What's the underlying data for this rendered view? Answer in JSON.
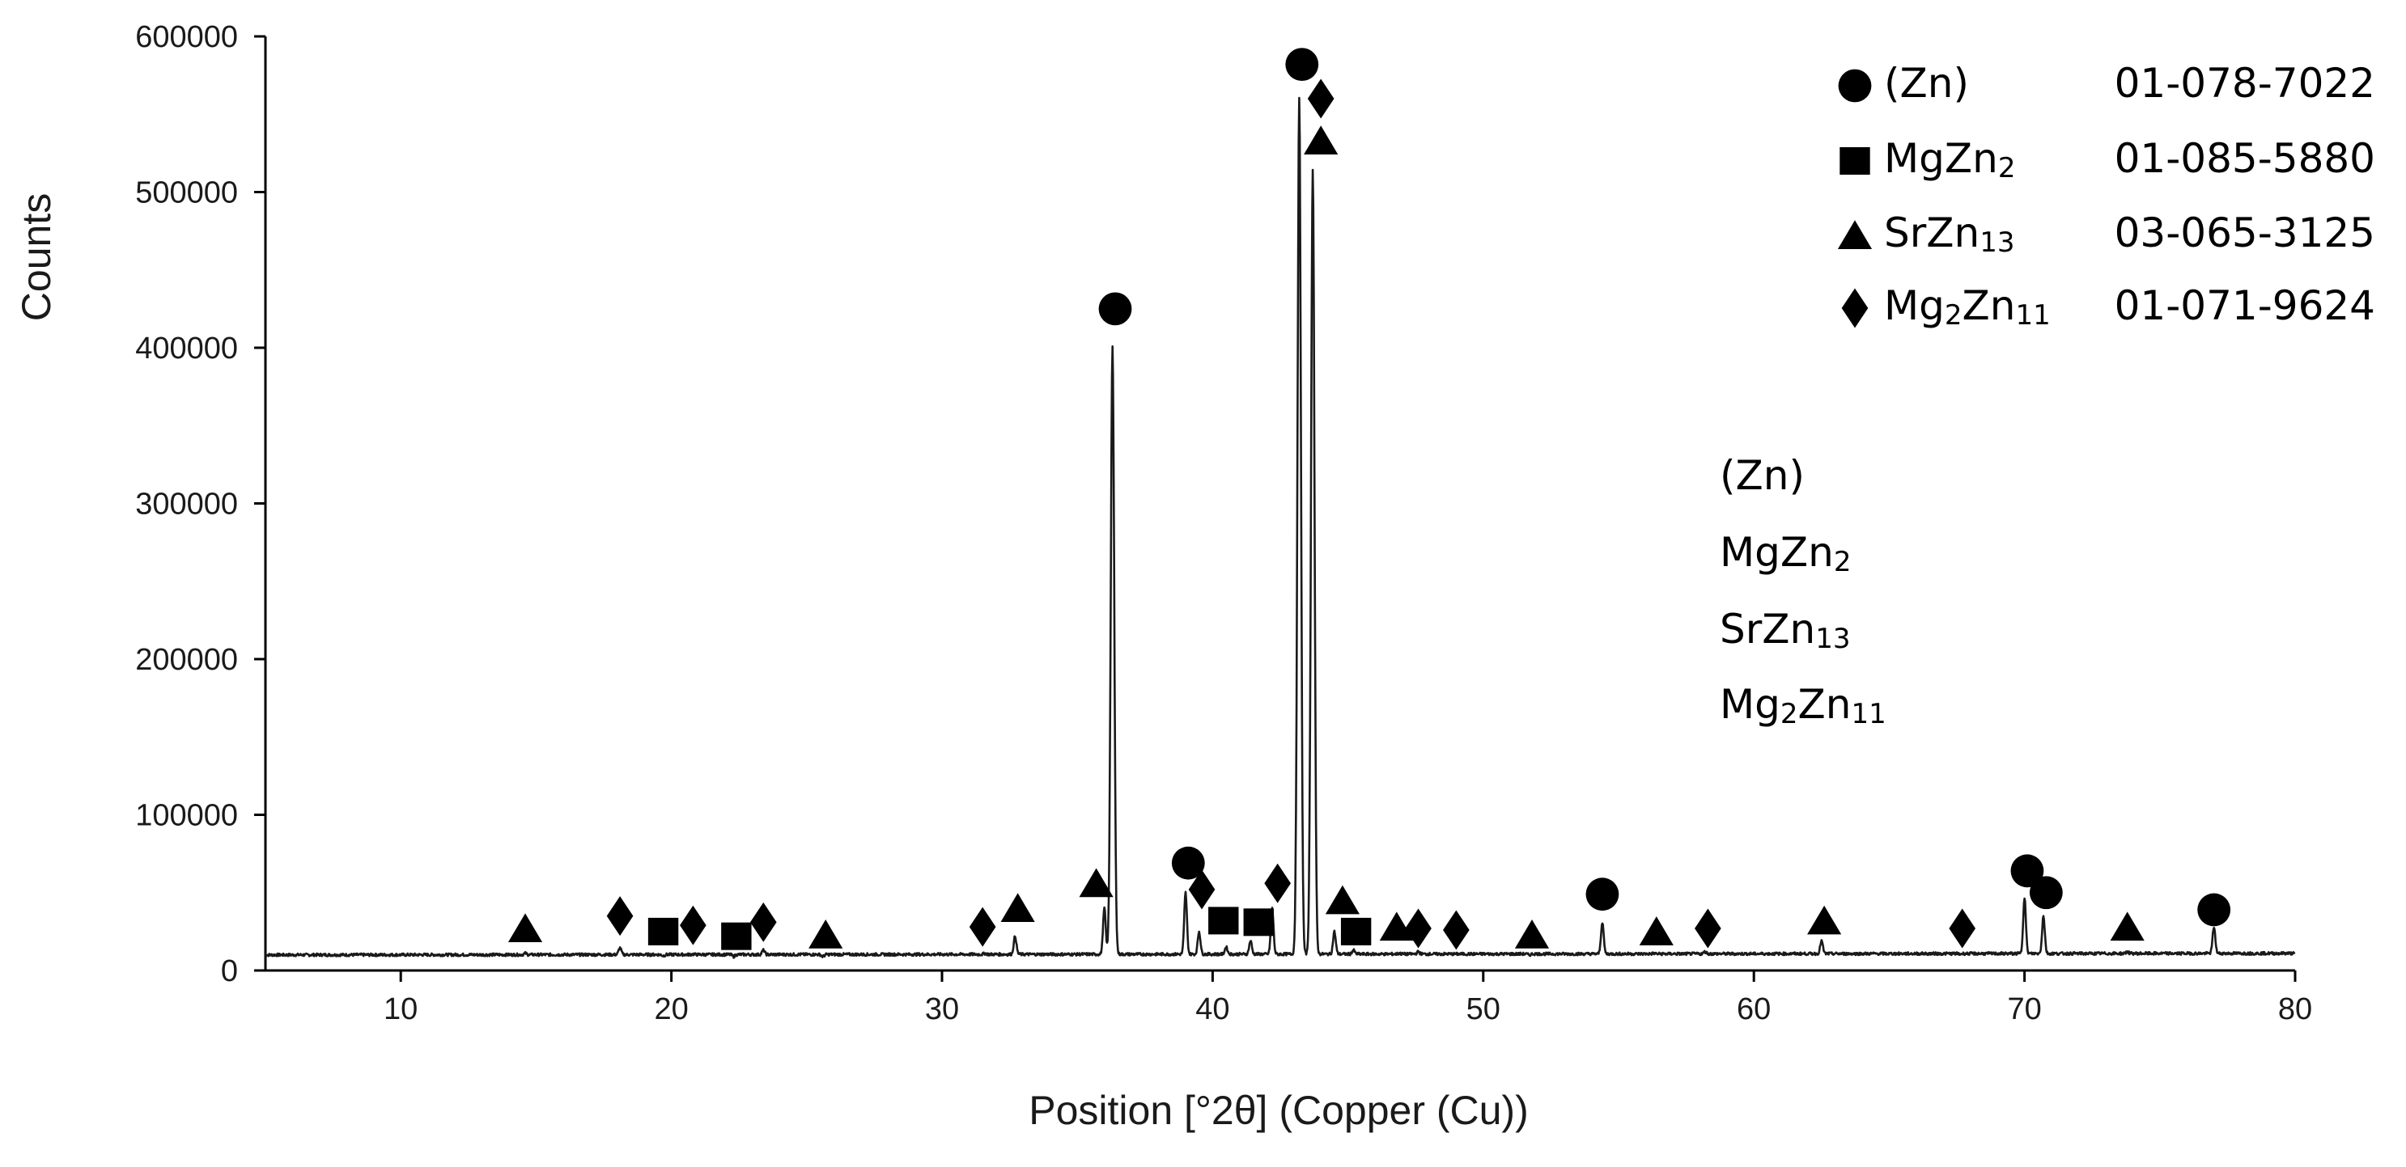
{
  "chart_data": {
    "type": "line",
    "xlabel": "Position [°2θ] (Copper (Cu))",
    "ylabel": "Counts",
    "xlim": [
      5,
      80
    ],
    "ylim": [
      0,
      600000
    ],
    "x_ticks": [
      10,
      20,
      30,
      40,
      50,
      60,
      70,
      80
    ],
    "x_tick_labels": [
      "10",
      "20",
      "30",
      "40",
      "50",
      "60",
      "70",
      "80"
    ],
    "y_ticks": [
      0,
      100000,
      200000,
      300000,
      400000,
      500000,
      600000
    ],
    "y_tick_labels": [
      "0",
      "100000",
      "200000",
      "300000",
      "400000",
      "500000",
      "600000"
    ],
    "grid": false,
    "legend_position": "top-right",
    "baseline": {
      "start": 10000,
      "end": 11000
    },
    "peaks": [
      {
        "x": 14.6,
        "y": 11000
      },
      {
        "x": 18.1,
        "y": 14500
      },
      {
        "x": 19.7,
        "y": 9500
      },
      {
        "x": 20.8,
        "y": 10500
      },
      {
        "x": 22.3,
        "y": 9000
      },
      {
        "x": 23.4,
        "y": 13000
      },
      {
        "x": 25.6,
        "y": 9000
      },
      {
        "x": 31.6,
        "y": 11000
      },
      {
        "x": 32.7,
        "y": 22000
      },
      {
        "x": 36.0,
        "y": 40000
      },
      {
        "x": 36.3,
        "y": 400000
      },
      {
        "x": 39.0,
        "y": 50000
      },
      {
        "x": 39.5,
        "y": 25000
      },
      {
        "x": 40.5,
        "y": 15000
      },
      {
        "x": 41.4,
        "y": 19000
      },
      {
        "x": 42.2,
        "y": 40000
      },
      {
        "x": 43.2,
        "y": 560000
      },
      {
        "x": 43.7,
        "y": 515000
      },
      {
        "x": 44.5,
        "y": 25000
      },
      {
        "x": 45.2,
        "y": 13000
      },
      {
        "x": 46.9,
        "y": 11000
      },
      {
        "x": 47.6,
        "y": 12000
      },
      {
        "x": 51.7,
        "y": 10000
      },
      {
        "x": 54.4,
        "y": 31000
      },
      {
        "x": 56.3,
        "y": 11000
      },
      {
        "x": 58.2,
        "y": 12000
      },
      {
        "x": 62.5,
        "y": 19000
      },
      {
        "x": 67.6,
        "y": 10500
      },
      {
        "x": 70.0,
        "y": 47000
      },
      {
        "x": 70.7,
        "y": 35000
      },
      {
        "x": 73.8,
        "y": 12000
      },
      {
        "x": 77.0,
        "y": 28000
      }
    ],
    "phases": [
      {
        "key": "zn",
        "label": "(Zn)",
        "sub": "",
        "label_tail": "",
        "sub2": "",
        "marker": "circle",
        "card": "01-078-7022"
      },
      {
        "key": "mgzn2",
        "label": "MgZn",
        "sub": "2",
        "label_tail": "",
        "sub2": "",
        "marker": "square",
        "card": "01-085-5880"
      },
      {
        "key": "srzn13",
        "label": "SrZn",
        "sub": "13",
        "label_tail": "",
        "sub2": "",
        "marker": "triangle",
        "card": "03-065-3125"
      },
      {
        "key": "mg2zn11",
        "label": "Mg",
        "sub": "2",
        "label_tail": "Zn",
        "sub2": "11",
        "marker": "diamond",
        "card": "01-071-9624"
      }
    ],
    "peak_markers": [
      {
        "phase": "srzn13",
        "x": 14.6,
        "y": 27000
      },
      {
        "phase": "mg2zn11",
        "x": 18.1,
        "y": 35000
      },
      {
        "phase": "mgzn2",
        "x": 19.7,
        "y": 25000
      },
      {
        "phase": "mg2zn11",
        "x": 20.8,
        "y": 29000
      },
      {
        "phase": "mgzn2",
        "x": 22.4,
        "y": 22000
      },
      {
        "phase": "mg2zn11",
        "x": 23.4,
        "y": 31000
      },
      {
        "phase": "srzn13",
        "x": 25.7,
        "y": 23000
      },
      {
        "phase": "mg2zn11",
        "x": 31.5,
        "y": 28000
      },
      {
        "phase": "srzn13",
        "x": 32.8,
        "y": 40000
      },
      {
        "phase": "srzn13",
        "x": 35.7,
        "y": 56000
      },
      {
        "phase": "zn",
        "x": 36.4,
        "y": 425000
      },
      {
        "phase": "zn",
        "x": 39.1,
        "y": 69000
      },
      {
        "phase": "mg2zn11",
        "x": 39.6,
        "y": 52000
      },
      {
        "phase": "mgzn2",
        "x": 40.4,
        "y": 32000
      },
      {
        "phase": "mgzn2",
        "x": 41.7,
        "y": 31000
      },
      {
        "phase": "mg2zn11",
        "x": 42.4,
        "y": 56000
      },
      {
        "phase": "zn",
        "x": 43.3,
        "y": 582000
      },
      {
        "phase": "mg2zn11",
        "x": 44.0,
        "y": 560000
      },
      {
        "phase": "srzn13",
        "x": 44.0,
        "y": 533000
      },
      {
        "phase": "srzn13",
        "x": 44.8,
        "y": 45000
      },
      {
        "phase": "mgzn2",
        "x": 45.3,
        "y": 25000
      },
      {
        "phase": "srzn13",
        "x": 46.8,
        "y": 28000
      },
      {
        "phase": "mg2zn11",
        "x": 47.6,
        "y": 27000
      },
      {
        "phase": "mg2zn11",
        "x": 49.0,
        "y": 26000
      },
      {
        "phase": "srzn13",
        "x": 51.8,
        "y": 23000
      },
      {
        "phase": "zn",
        "x": 54.4,
        "y": 49000
      },
      {
        "phase": "srzn13",
        "x": 56.4,
        "y": 25000
      },
      {
        "phase": "mg2zn11",
        "x": 58.3,
        "y": 27000
      },
      {
        "phase": "srzn13",
        "x": 62.6,
        "y": 32000
      },
      {
        "phase": "mg2zn11",
        "x": 67.7,
        "y": 27000
      },
      {
        "phase": "zn",
        "x": 70.1,
        "y": 64000
      },
      {
        "phase": "zn",
        "x": 70.8,
        "y": 50000
      },
      {
        "phase": "srzn13",
        "x": 73.8,
        "y": 28000
      },
      {
        "phase": "zn",
        "x": 77.0,
        "y": 39000
      }
    ]
  }
}
